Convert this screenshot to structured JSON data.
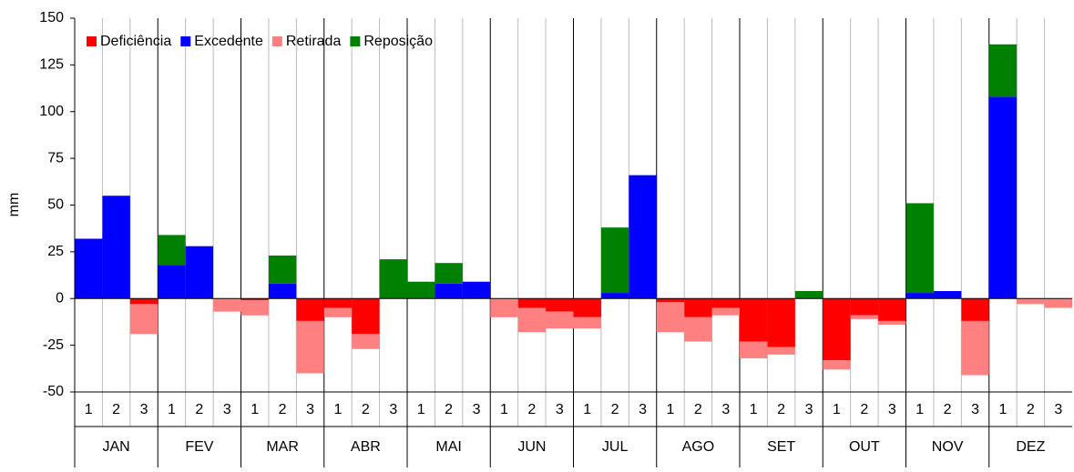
{
  "chart_data": {
    "type": "bar",
    "stacked": true,
    "y_label": "mm",
    "categories": [
      "1",
      "2",
      "3",
      "1",
      "2",
      "3",
      "1",
      "2",
      "3",
      "1",
      "2",
      "3",
      "1",
      "2",
      "3",
      "1",
      "2",
      "3",
      "1",
      "2",
      "3",
      "1",
      "2",
      "3",
      "1",
      "2",
      "3",
      "1",
      "2",
      "3",
      "1",
      "2",
      "3",
      "1",
      "2",
      "3"
    ],
    "groups": [
      "JAN",
      "FEV",
      "MAR",
      "ABR",
      "MAI",
      "JUN",
      "JUL",
      "AGO",
      "SET",
      "OUT",
      "NOV",
      "DEZ"
    ],
    "series": [
      {
        "name": "Deficiência",
        "color": "#ff0000",
        "values": [
          0,
          0,
          -3,
          0,
          0,
          0,
          -1,
          0,
          -12,
          -5,
          -19,
          0,
          0,
          0,
          0,
          0,
          -5,
          -7,
          -10,
          0,
          0,
          -2,
          -10,
          -5,
          -23,
          -26,
          0,
          -33,
          -9,
          -12,
          0,
          0,
          -12,
          0,
          0,
          0
        ]
      },
      {
        "name": "Excedente",
        "color": "#0000ff",
        "values": [
          32,
          55,
          0,
          18,
          28,
          0,
          0,
          8,
          0,
          0,
          0,
          0,
          0,
          8,
          9,
          0,
          0,
          0,
          0,
          3,
          66,
          0,
          0,
          0,
          0,
          0,
          0,
          0,
          0,
          0,
          3,
          4,
          0,
          108,
          0,
          0
        ]
      },
      {
        "name": "Retirada",
        "color": "#ff8080",
        "values": [
          0,
          0,
          -16,
          0,
          0,
          -7,
          -8,
          0,
          -28,
          -5,
          -8,
          0,
          0,
          0,
          0,
          -10,
          -13,
          -9,
          -6,
          0,
          0,
          -16,
          -13,
          -4,
          -9,
          -4,
          0,
          -5,
          -2,
          -2,
          0,
          0,
          -29,
          0,
          -3,
          -5
        ]
      },
      {
        "name": "Reposição",
        "color": "#008000",
        "values": [
          0,
          0,
          0,
          16,
          0,
          0,
          0,
          15,
          0,
          0,
          0,
          21,
          9,
          11,
          0,
          0,
          0,
          0,
          0,
          35,
          0,
          0,
          0,
          0,
          0,
          0,
          4,
          0,
          0,
          0,
          48,
          0,
          0,
          28,
          0,
          0
        ]
      }
    ],
    "ylim": [
      -50,
      150
    ],
    "yticks": [
      -50,
      -25,
      0,
      25,
      50,
      75,
      100,
      125,
      150
    ],
    "grid": true,
    "legend": "top-left"
  }
}
